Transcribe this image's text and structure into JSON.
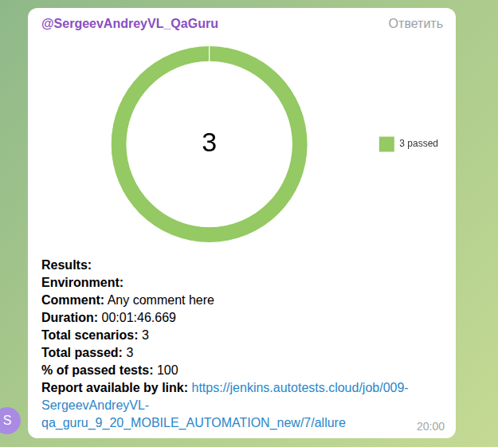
{
  "message": {
    "author": "@SergeevAndreyVL_QaGuru",
    "reply_button": "Ответить",
    "time": "20:00",
    "avatar_letter": "S"
  },
  "chart_data": {
    "type": "doughnut",
    "annotations": [
      "3"
    ],
    "categories": [
      "3 passed"
    ],
    "values": [
      3
    ],
    "colors": [
      "#94c963"
    ],
    "legend": "right"
  },
  "details": [
    {
      "label": "Results:"
    },
    {
      "label": "Environment:"
    },
    {
      "label": "Comment:",
      "value": "Any comment here"
    },
    {
      "label": "Duration:",
      "value": "00:01:46.669"
    },
    {
      "label": "Total scenarios:",
      "value": 3
    },
    {
      "label": "Total passed:",
      "value": 3
    },
    {
      "label": "% of passed tests:",
      "value": 100
    },
    {
      "label": "Report available by link:",
      "link": "https://jenkins.autotests.cloud/job/009-SergeevAndreyVL-qa_guru_9_20_MOBILE_AUTOMATION_new/7/allure"
    }
  ]
}
